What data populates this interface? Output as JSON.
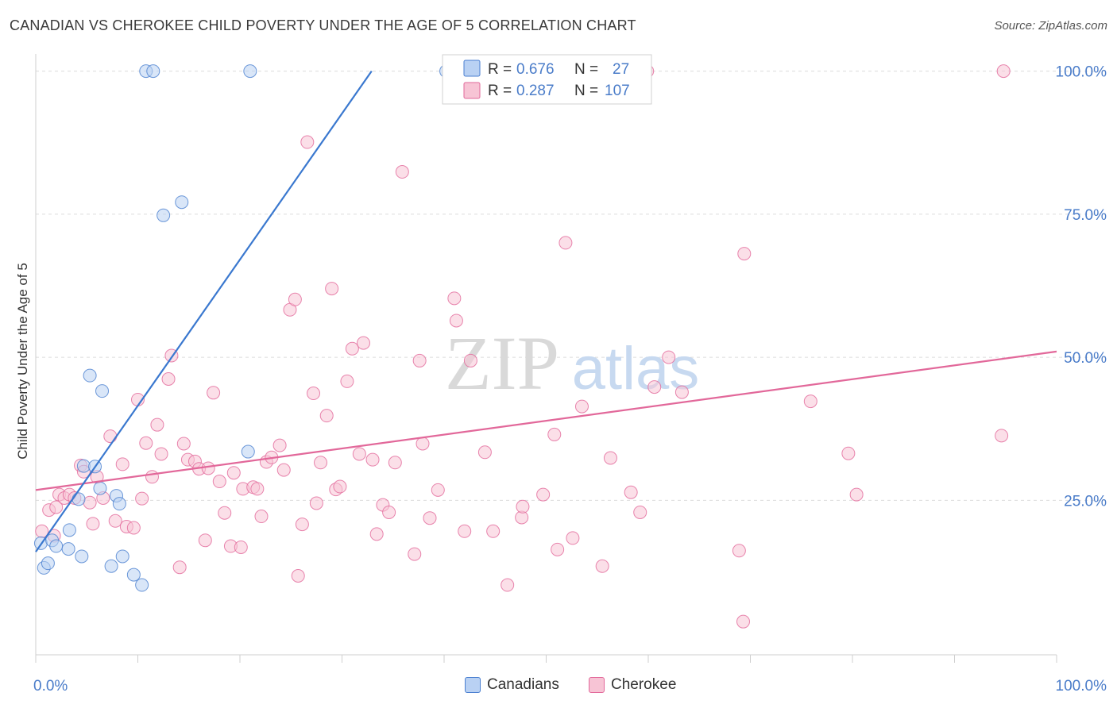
{
  "title": "CANADIAN VS CHEROKEE CHILD POVERTY UNDER THE AGE OF 5 CORRELATION CHART",
  "source": "Source: ZipAtlas.com",
  "watermark": {
    "zip": "ZIP",
    "atlas": "atlas"
  },
  "colors": {
    "blue": "#4a7fd0",
    "blue_fill": "#b9d1f3",
    "pink": "#e2689a",
    "pink_fill": "#f7c4d5",
    "axis_text": "#4a7cc9",
    "grid": "#dcdcdc"
  },
  "legend": {
    "canadians": {
      "r_label": "R =",
      "r_value": "0.676",
      "n_label": "N =",
      "n_value": "27"
    },
    "cherokee": {
      "r_label": "R =",
      "r_value": "0.287",
      "n_label": "N =",
      "n_value": "107"
    }
  },
  "bottom_legend": {
    "canadians": "Canadians",
    "cherokee": "Cherokee"
  },
  "chart_data": {
    "type": "scatter",
    "title": "CANADIAN VS CHEROKEE CHILD POVERTY UNDER THE AGE OF 5 CORRELATION CHART",
    "xlabel": "",
    "ylabel": "Child Poverty Under the Age of 5",
    "xlim": [
      0,
      100
    ],
    "ylim": [
      -2,
      103
    ],
    "x_tick_labels": [
      "0.0%",
      "100.0%"
    ],
    "y_tick_labels": [
      "25.0%",
      "50.0%",
      "75.0%",
      "100.0%"
    ],
    "y_ticks": [
      25,
      50,
      75,
      100
    ],
    "grid": true,
    "series": [
      {
        "name": "Canadians",
        "r": 0.676,
        "n": 27,
        "trend": [
          [
            0,
            16.0
          ],
          [
            32.9,
            100
          ]
        ],
        "points": [
          [
            0.5,
            17.5
          ],
          [
            0.8,
            13.2
          ],
          [
            1.2,
            14.0
          ],
          [
            1.6,
            18.0
          ],
          [
            2.0,
            17.0
          ],
          [
            3.2,
            16.5
          ],
          [
            3.3,
            19.8
          ],
          [
            4.2,
            25.2
          ],
          [
            4.5,
            15.2
          ],
          [
            4.7,
            31.0
          ],
          [
            5.8,
            30.9
          ],
          [
            6.3,
            27.1
          ],
          [
            6.5,
            44.1
          ],
          [
            7.4,
            13.5
          ],
          [
            7.9,
            25.8
          ],
          [
            8.2,
            24.4
          ],
          [
            8.5,
            15.2
          ],
          [
            9.6,
            12.0
          ],
          [
            10.4,
            10.2
          ],
          [
            5.3,
            46.8
          ],
          [
            12.5,
            74.8
          ],
          [
            14.3,
            77.1
          ],
          [
            10.8,
            100
          ],
          [
            11.5,
            100
          ],
          [
            21.0,
            100
          ],
          [
            20.8,
            33.5
          ],
          [
            40.2,
            100
          ]
        ]
      },
      {
        "name": "Cherokee",
        "r": 0.287,
        "n": 107,
        "trend": [
          [
            0,
            26.8
          ],
          [
            100,
            51.0
          ]
        ],
        "points": [
          [
            0.6,
            19.6
          ],
          [
            1.3,
            23.3
          ],
          [
            2.0,
            23.8
          ],
          [
            2.3,
            26.0
          ],
          [
            2.8,
            25.4
          ],
          [
            3.3,
            26.0
          ],
          [
            3.8,
            25.4
          ],
          [
            4.4,
            31.1
          ],
          [
            4.7,
            30.0
          ],
          [
            5.3,
            24.6
          ],
          [
            5.6,
            20.9
          ],
          [
            6.0,
            29.1
          ],
          [
            6.6,
            25.4
          ],
          [
            7.3,
            36.2
          ],
          [
            7.8,
            21.4
          ],
          [
            8.5,
            31.3
          ],
          [
            8.9,
            20.4
          ],
          [
            9.6,
            20.2
          ],
          [
            10.0,
            42.6
          ],
          [
            10.4,
            25.3
          ],
          [
            10.8,
            35.0
          ],
          [
            11.4,
            29.1
          ],
          [
            11.9,
            38.2
          ],
          [
            12.3,
            33.1
          ],
          [
            13.0,
            46.2
          ],
          [
            13.3,
            50.3
          ],
          [
            14.1,
            13.3
          ],
          [
            14.5,
            34.9
          ],
          [
            14.9,
            32.1
          ],
          [
            15.6,
            31.8
          ],
          [
            16.0,
            30.5
          ],
          [
            16.6,
            18.0
          ],
          [
            16.9,
            30.6
          ],
          [
            17.4,
            43.8
          ],
          [
            18.0,
            28.3
          ],
          [
            18.5,
            22.8
          ],
          [
            19.1,
            17.0
          ],
          [
            19.4,
            29.8
          ],
          [
            20.1,
            16.8
          ],
          [
            20.3,
            27.0
          ],
          [
            21.3,
            27.3
          ],
          [
            21.7,
            27.0
          ],
          [
            22.1,
            22.2
          ],
          [
            22.6,
            31.7
          ],
          [
            23.1,
            32.5
          ],
          [
            23.9,
            34.6
          ],
          [
            24.3,
            30.3
          ],
          [
            24.9,
            58.3
          ],
          [
            25.4,
            60.1
          ],
          [
            25.7,
            11.8
          ],
          [
            26.1,
            20.8
          ],
          [
            26.6,
            87.6
          ],
          [
            27.2,
            43.7
          ],
          [
            27.5,
            24.5
          ],
          [
            27.9,
            31.6
          ],
          [
            28.5,
            39.8
          ],
          [
            29.0,
            62.0
          ],
          [
            29.4,
            26.9
          ],
          [
            29.8,
            27.4
          ],
          [
            30.5,
            45.8
          ],
          [
            31.0,
            51.5
          ],
          [
            31.7,
            33.1
          ],
          [
            32.1,
            52.5
          ],
          [
            33.0,
            32.1
          ],
          [
            33.4,
            19.1
          ],
          [
            34.0,
            24.2
          ],
          [
            34.6,
            22.9
          ],
          [
            35.2,
            31.6
          ],
          [
            35.9,
            82.4
          ],
          [
            37.1,
            15.6
          ],
          [
            37.6,
            49.4
          ],
          [
            37.9,
            34.9
          ],
          [
            38.6,
            21.9
          ],
          [
            39.4,
            26.8
          ],
          [
            41.0,
            60.3
          ],
          [
            41.2,
            56.4
          ],
          [
            42.0,
            19.6
          ],
          [
            42.6,
            49.4
          ],
          [
            44.0,
            33.4
          ],
          [
            44.8,
            19.6
          ],
          [
            46.2,
            10.2
          ],
          [
            47.6,
            22.0
          ],
          [
            47.7,
            23.9
          ],
          [
            49.7,
            26.0
          ],
          [
            50.8,
            36.5
          ],
          [
            51.1,
            16.4
          ],
          [
            51.9,
            70.0
          ],
          [
            52.6,
            18.4
          ],
          [
            53.5,
            41.4
          ],
          [
            55.5,
            13.5
          ],
          [
            56.3,
            32.4
          ],
          [
            58.3,
            26.4
          ],
          [
            59.2,
            22.9
          ],
          [
            60.6,
            44.8
          ],
          [
            62.0,
            50.0
          ],
          [
            63.3,
            43.9
          ],
          [
            68.9,
            16.2
          ],
          [
            69.3,
            3.8
          ],
          [
            69.4,
            68.1
          ],
          [
            75.9,
            42.3
          ],
          [
            79.6,
            33.2
          ],
          [
            80.4,
            26.0
          ],
          [
            94.6,
            36.3
          ],
          [
            94.8,
            100
          ],
          [
            59.9,
            100
          ],
          [
            59.5,
            100
          ],
          [
            1.8,
            18.8
          ]
        ]
      }
    ]
  }
}
